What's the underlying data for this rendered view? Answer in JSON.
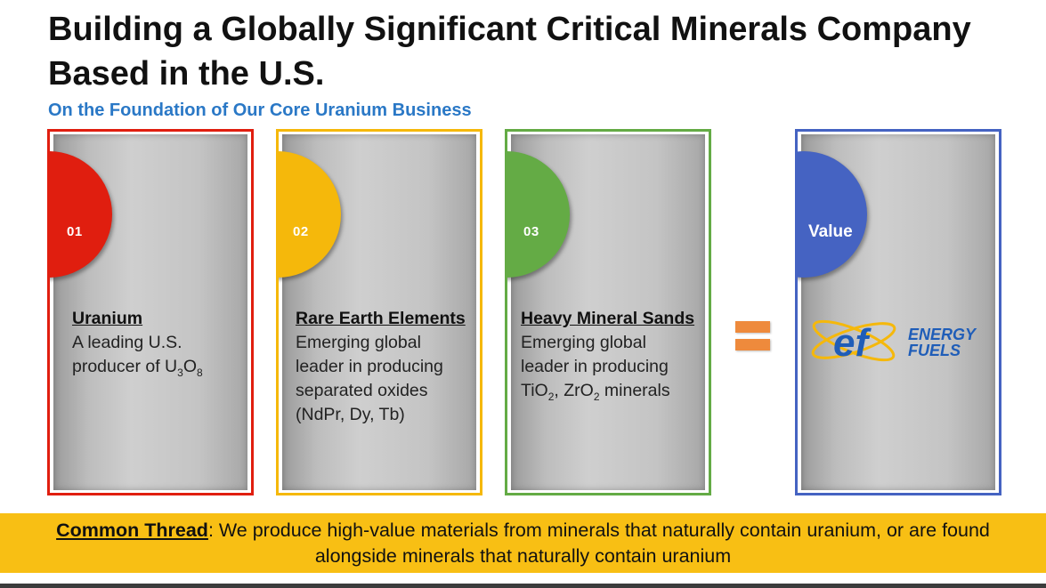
{
  "title": "Building a Globally Significant Critical Minerals Company Based in the U.S.",
  "subtitle": "On the Foundation of Our Core Uranium Business",
  "cards": [
    {
      "number": "01",
      "heading": "Uranium",
      "body_lines": [
        "A leading U.S.",
        "producer of U3O8"
      ],
      "color": "#e01e0f"
    },
    {
      "number": "02",
      "heading": "Rare Earth Elements",
      "body_lines": [
        "Emerging global",
        "leader in producing",
        "separated oxides",
        "(NdPr, Dy, Tb)"
      ],
      "color": "#f5b80b"
    },
    {
      "number": "03",
      "heading": "Heavy Mineral Sands",
      "body_lines": [
        "Emerging global",
        "leader in producing",
        "TiO2, ZrO2 minerals"
      ],
      "color": "#64ab45"
    }
  ],
  "equals_color": "#ee8a3c",
  "value_card": {
    "label": "Value",
    "color": "#4563c2",
    "logo_mark": "ef",
    "logo_text_line1": "ENERGY",
    "logo_text_line2": "FUELS",
    "logo_color": "#1f5db8",
    "logo_accent": "#f5b80b"
  },
  "banner": {
    "strong": "Common Thread",
    "text_line1": ": We produce high-value materials from minerals that naturally contain uranium, or are found",
    "text_line2": "alongside minerals that naturally contain uranium",
    "color": "#f8bf14"
  }
}
